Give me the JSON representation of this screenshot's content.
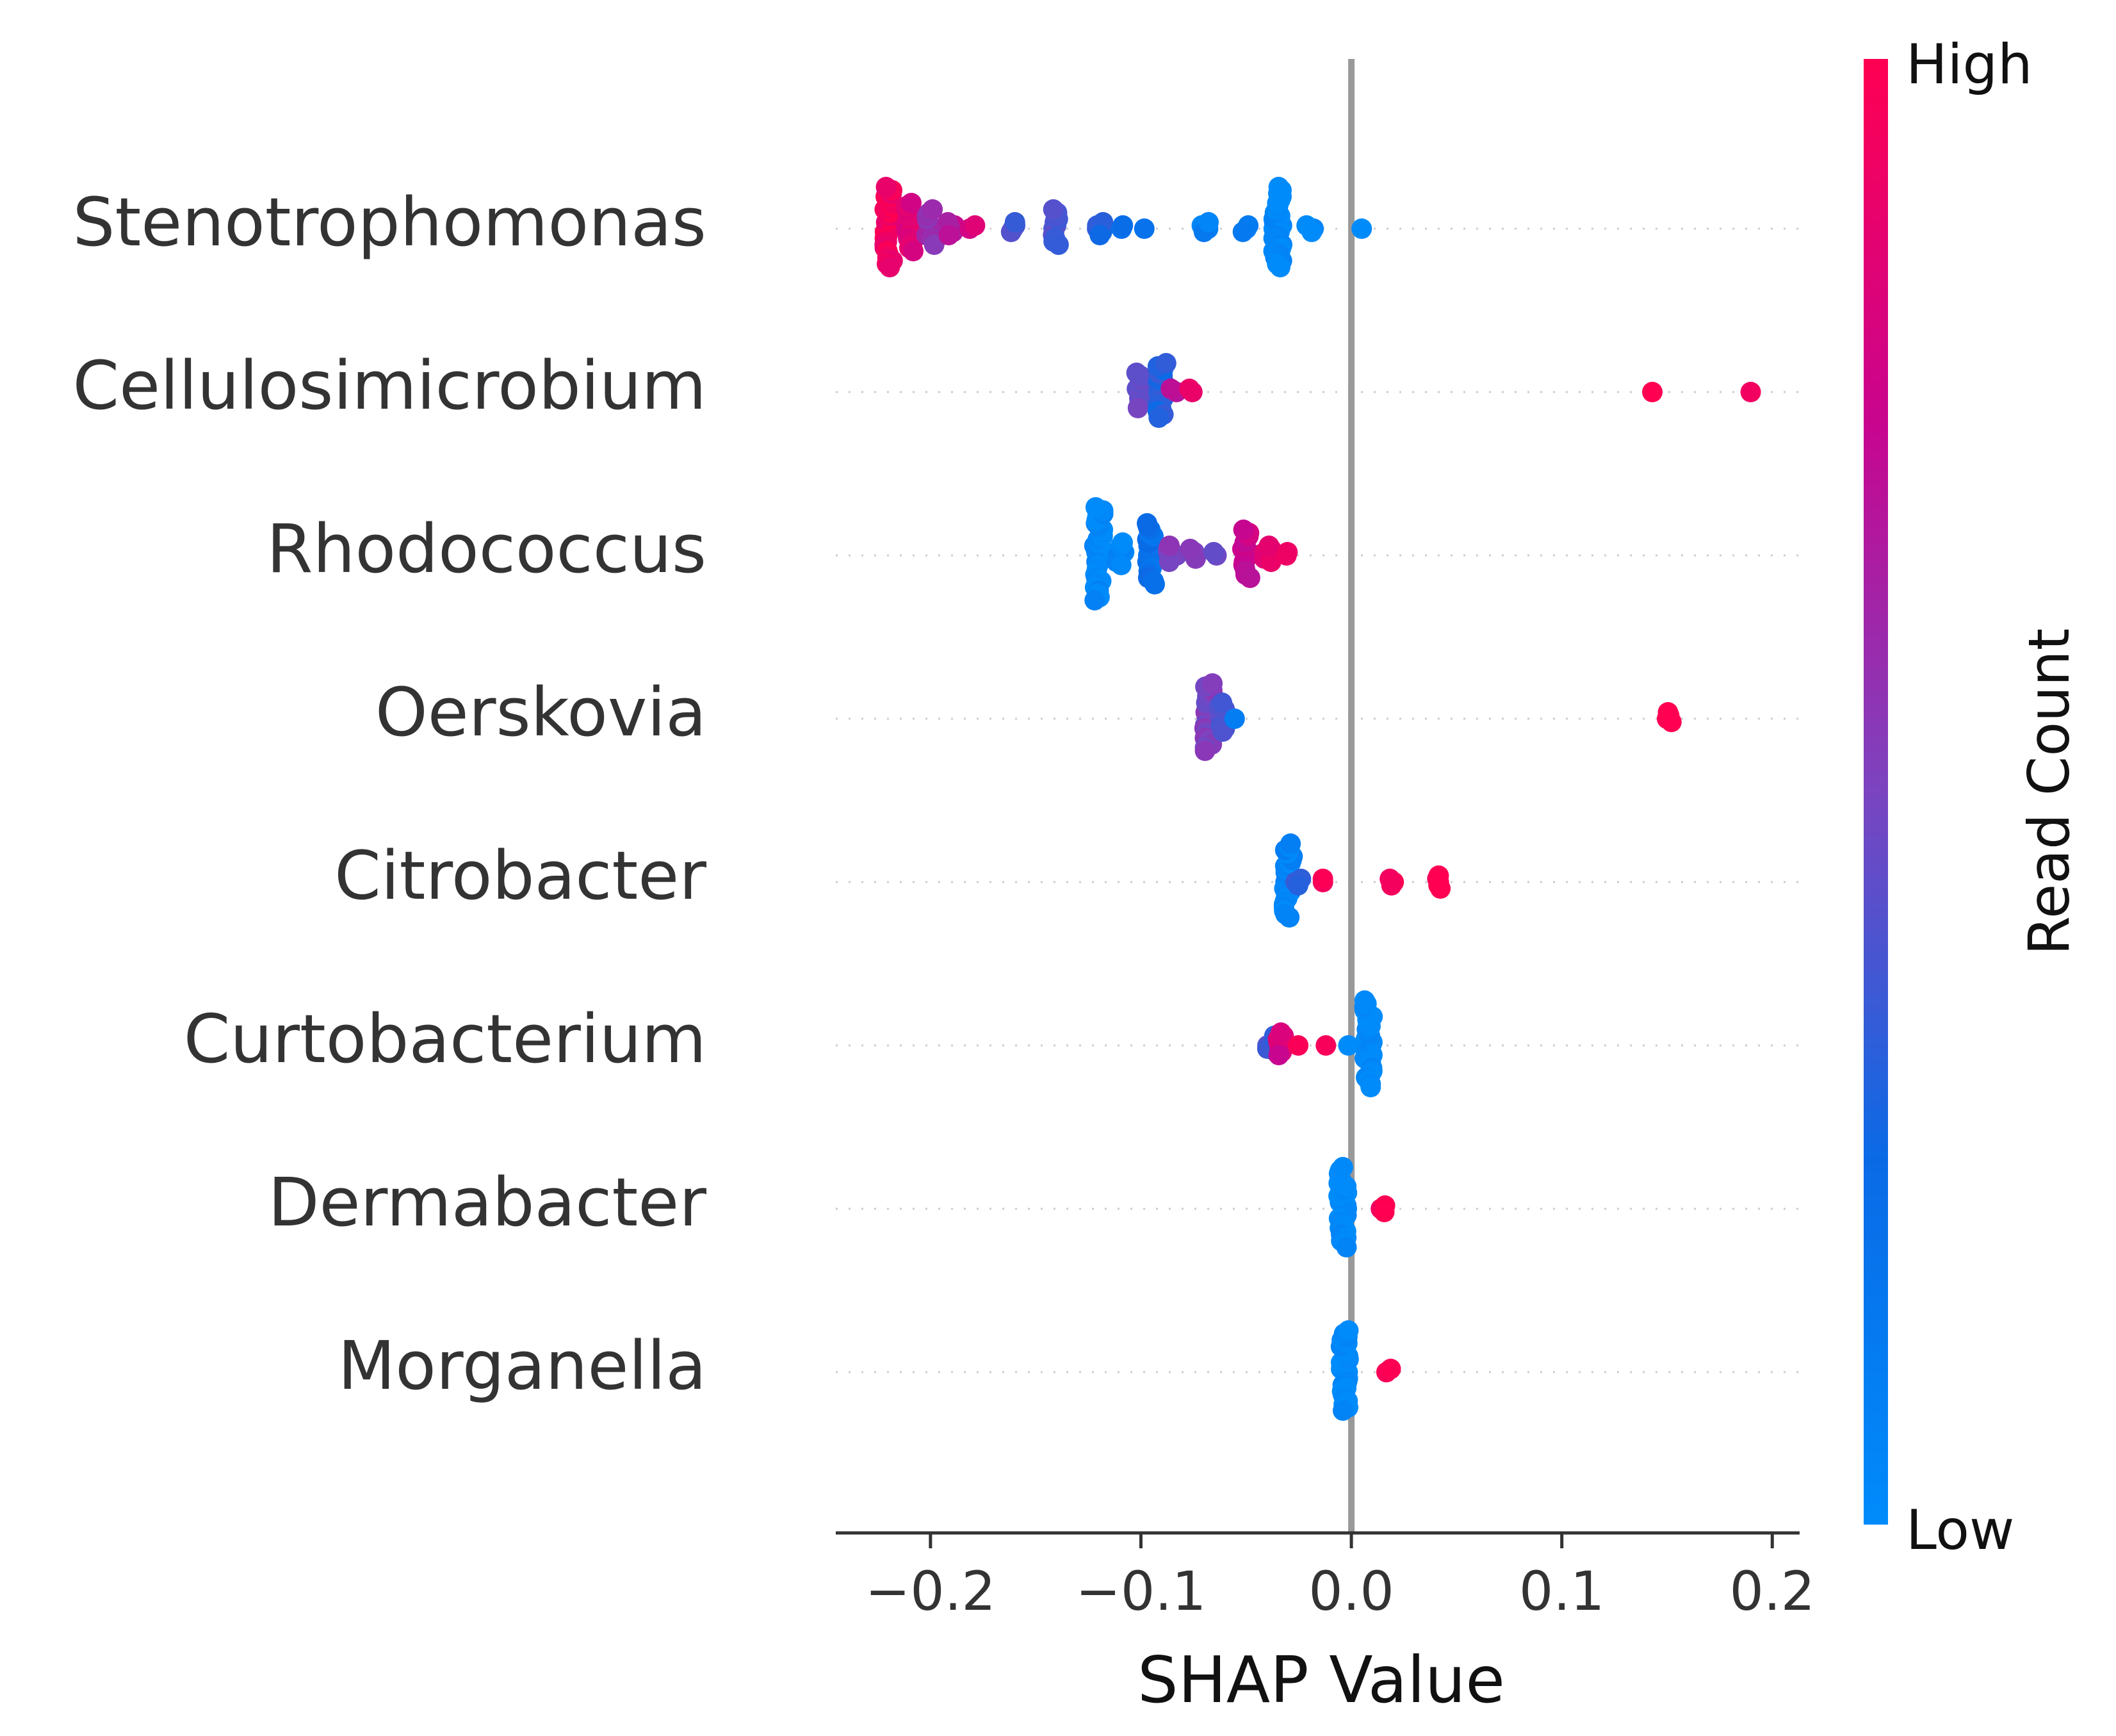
{
  "chart_data": {
    "type": "scatter",
    "xlabel": "SHAP Value",
    "xlim": [
      -0.245,
      0.213
    ],
    "xticks": [
      {
        "value": -0.2,
        "label": "−0.2"
      },
      {
        "value": -0.1,
        "label": "−0.1"
      },
      {
        "value": 0.0,
        "label": "0.0"
      },
      {
        "value": 0.1,
        "label": "0.1"
      },
      {
        "value": 0.2,
        "label": "0.2"
      }
    ],
    "features": [
      "Stenotrophomonas",
      "Cellulosimicrobium",
      "Rhodococcus",
      "Oerskovia",
      "Citrobacter",
      "Curtobacterium",
      "Dermabacter",
      "Morganella"
    ],
    "colorbar": {
      "label": "Read Count",
      "high_label": "High",
      "low_label": "Low",
      "low_color": "#008bfb",
      "high_color": "#ff0052"
    },
    "zero_line_color": "#999999",
    "series": [
      {
        "feature": "Stenotrophomonas",
        "points": [
          {
            "x": -0.22,
            "count": 26,
            "c": 0.95
          },
          {
            "x": -0.21,
            "count": 16,
            "c": 0.85
          },
          {
            "x": -0.2,
            "count": 12,
            "c": 0.6
          },
          {
            "x": -0.19,
            "count": 5,
            "c": 0.7
          },
          {
            "x": -0.18,
            "count": 2,
            "c": 0.85
          },
          {
            "x": -0.16,
            "count": 4,
            "c": 0.4
          },
          {
            "x": -0.14,
            "count": 12,
            "c": 0.4
          },
          {
            "x": -0.12,
            "count": 5,
            "c": 0.3
          },
          {
            "x": -0.11,
            "count": 2,
            "c": 0.25
          },
          {
            "x": -0.1,
            "count": 1,
            "c": 0.2
          },
          {
            "x": -0.07,
            "count": 4,
            "c": 0.1
          },
          {
            "x": -0.05,
            "count": 3,
            "c": 0.08
          },
          {
            "x": -0.035,
            "count": 26,
            "c": 0.02
          },
          {
            "x": -0.02,
            "count": 3,
            "c": 0.0
          },
          {
            "x": 0.005,
            "count": 1,
            "c": 0.0
          }
        ]
      },
      {
        "feature": "Cellulosimicrobium",
        "points": [
          {
            "x": -0.1,
            "count": 12,
            "c": 0.45
          },
          {
            "x": -0.09,
            "count": 18,
            "c": 0.3
          },
          {
            "x": -0.085,
            "count": 2,
            "c": 0.7
          },
          {
            "x": -0.075,
            "count": 2,
            "c": 0.95
          },
          {
            "x": 0.143,
            "count": 1,
            "c": 1.0
          },
          {
            "x": 0.191,
            "count": 1,
            "c": 1.0
          }
        ]
      },
      {
        "feature": "Rhodococcus",
        "points": [
          {
            "x": -0.12,
            "count": 30,
            "c": 0.02
          },
          {
            "x": -0.11,
            "count": 8,
            "c": 0.05
          },
          {
            "x": -0.095,
            "count": 20,
            "c": 0.2
          },
          {
            "x": -0.085,
            "count": 6,
            "c": 0.5
          },
          {
            "x": -0.075,
            "count": 4,
            "c": 0.55
          },
          {
            "x": -0.065,
            "count": 2,
            "c": 0.5
          },
          {
            "x": -0.05,
            "count": 16,
            "c": 0.75
          },
          {
            "x": -0.04,
            "count": 6,
            "c": 0.85
          },
          {
            "x": -0.03,
            "count": 2,
            "c": 0.95
          }
        ]
      },
      {
        "feature": "Oerskovia",
        "points": [
          {
            "x": -0.068,
            "count": 22,
            "c": 0.5
          },
          {
            "x": -0.062,
            "count": 10,
            "c": 0.4
          },
          {
            "x": -0.055,
            "count": 1,
            "c": 0.1
          },
          {
            "x": 0.15,
            "count": 4,
            "c": 1.0
          }
        ]
      },
      {
        "feature": "Citrobacter",
        "points": [
          {
            "x": -0.03,
            "count": 24,
            "c": 0.05
          },
          {
            "x": -0.025,
            "count": 3,
            "c": 0.3
          },
          {
            "x": -0.015,
            "count": 2,
            "c": 0.95
          },
          {
            "x": 0.02,
            "count": 3,
            "c": 1.0
          },
          {
            "x": 0.042,
            "count": 5,
            "c": 1.0
          }
        ]
      },
      {
        "feature": "Curtobacterium",
        "points": [
          {
            "x": -0.038,
            "count": 6,
            "c": 0.35
          },
          {
            "x": -0.033,
            "count": 8,
            "c": 0.8
          },
          {
            "x": -0.025,
            "count": 1,
            "c": 1.0
          },
          {
            "x": -0.01,
            "count": 1,
            "c": 1.0
          },
          {
            "x": 0.0,
            "count": 1,
            "c": 0.0
          },
          {
            "x": 0.008,
            "count": 28,
            "c": 0.0
          }
        ]
      },
      {
        "feature": "Dermabacter",
        "points": [
          {
            "x": -0.004,
            "count": 26,
            "c": 0.0
          },
          {
            "x": 0.015,
            "count": 3,
            "c": 1.0
          }
        ]
      },
      {
        "feature": "Morganella",
        "points": [
          {
            "x": -0.003,
            "count": 26,
            "c": 0.0
          },
          {
            "x": 0.018,
            "count": 2,
            "c": 1.0
          }
        ]
      }
    ]
  }
}
